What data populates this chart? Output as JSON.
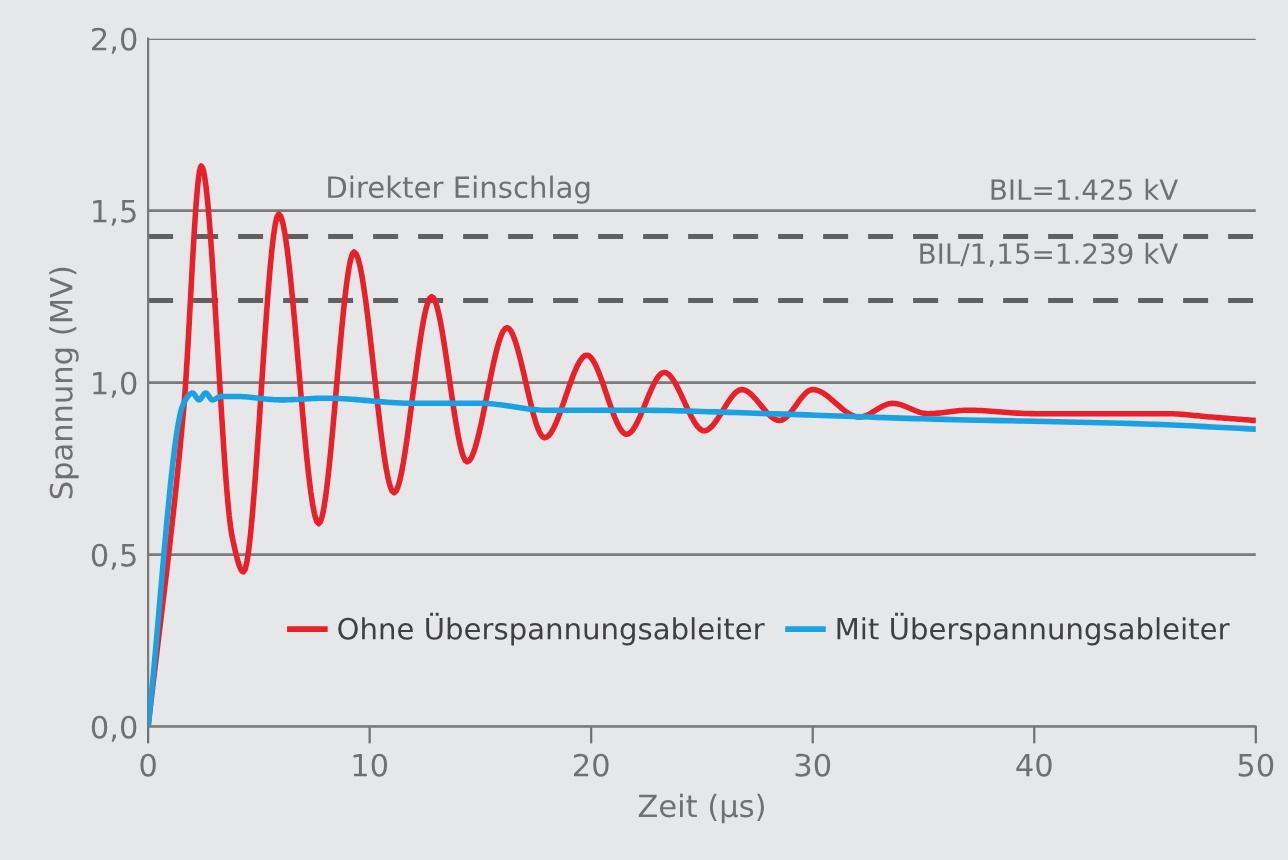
{
  "chart_data": {
    "type": "line",
    "xlabel": "Zeit (µs)",
    "ylabel": "Spannung (MV)",
    "xlim": [
      0,
      50
    ],
    "xticks": [
      0,
      10,
      20,
      30,
      40,
      50
    ],
    "ylim": [
      0,
      2
    ],
    "yticks": [
      {
        "value": 0,
        "label": "0,0"
      },
      {
        "value": 0.5,
        "label": "0,5"
      },
      {
        "value": 1,
        "label": "1,0"
      },
      {
        "value": 1.5,
        "label": "1,5"
      },
      {
        "value": 2,
        "label": "2,0"
      }
    ],
    "grid": "y",
    "legend": "bottom right",
    "line_style": "solid",
    "marker": "none",
    "series": [
      {
        "name": "Ohne Überspannungsableiter",
        "color": "#e8202a",
        "x": [
          0,
          1.6,
          2.4,
          3.8,
          4.3,
          5.9,
          7.7,
          9.3,
          11.1,
          12.8,
          14.4,
          16.2,
          17.9,
          19.8,
          21.6,
          23.3,
          25.1,
          26.8,
          28.5,
          30.0,
          32.1,
          33.6,
          35.2,
          37,
          40,
          43,
          46,
          48,
          50
        ],
        "values": [
          0,
          0.92,
          1.63,
          0.55,
          0.45,
          1.49,
          0.59,
          1.38,
          0.68,
          1.25,
          0.77,
          1.16,
          0.84,
          1.08,
          0.85,
          1.03,
          0.86,
          0.98,
          0.89,
          0.98,
          0.9,
          0.94,
          0.91,
          0.92,
          0.91,
          0.91,
          0.91,
          0.9,
          0.89
        ]
      },
      {
        "name": "Mit Überspannungsableiter",
        "color": "#1ba1e2",
        "x": [
          0,
          1.6,
          2.0,
          2.3,
          2.6,
          2.9,
          3.3,
          4,
          6,
          8,
          12,
          15,
          18,
          22,
          28,
          35,
          45,
          50
        ],
        "values": [
          0,
          0.94,
          0.97,
          0.95,
          0.97,
          0.95,
          0.96,
          0.96,
          0.95,
          0.955,
          0.94,
          0.94,
          0.92,
          0.92,
          0.91,
          0.895,
          0.88,
          0.865
        ]
      }
    ],
    "ref_lines": [
      {
        "axis": "y",
        "value": 1.425,
        "label": "BIL=1.425 kV",
        "color": "#606060",
        "line_style": "dashed"
      },
      {
        "axis": "y",
        "value": 1.239,
        "label": "BIL/1,15=1.239 kV",
        "color": "#606060",
        "line_style": "dashed"
      }
    ],
    "annotations": [
      "Direkter Einschlag"
    ]
  }
}
